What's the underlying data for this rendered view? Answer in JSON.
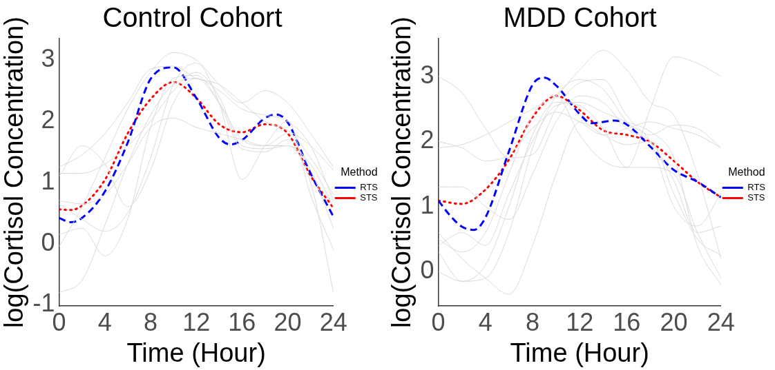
{
  "chart_data": [
    {
      "type": "line",
      "title": "Control Cohort",
      "xlabel": "Time (Hour)",
      "ylabel": "log(Cortisol Concentration)",
      "legend_title": "Method",
      "legend": "right",
      "grid": false,
      "xlim": [
        0,
        24
      ],
      "xticks": [
        0,
        4,
        8,
        12,
        16,
        20,
        24
      ],
      "ylim": [
        -1.02,
        3.35
      ],
      "yticks": [
        -1,
        0,
        1,
        2,
        3
      ],
      "series": [
        {
          "color": "#d9d9d9",
          "line_style": "solid",
          "x": [
            0,
            2,
            4,
            6,
            8,
            10,
            12,
            14,
            16,
            18,
            20,
            22,
            24
          ],
          "values": [
            -0.05,
            0.6,
            1.4,
            2.2,
            2.8,
            3.12,
            3.0,
            2.6,
            2.3,
            2.5,
            2.3,
            1.8,
            1.25
          ]
        },
        {
          "color": "#d9d9d9",
          "line_style": "solid",
          "x": [
            0,
            2,
            4,
            6,
            8,
            10,
            12,
            14,
            16,
            18,
            20,
            22,
            24
          ],
          "values": [
            1.25,
            1.45,
            1.8,
            2.3,
            2.85,
            2.9,
            2.7,
            2.6,
            2.3,
            2.0,
            1.85,
            1.6,
            1.2
          ]
        },
        {
          "color": "#d9d9d9",
          "line_style": "solid",
          "x": [
            0,
            2,
            4,
            6,
            8,
            10,
            12,
            14,
            16,
            18,
            20,
            22,
            24
          ],
          "values": [
            0.65,
            0.4,
            0.2,
            0.5,
            1.4,
            2.6,
            2.95,
            2.3,
            1.05,
            1.6,
            2.0,
            0.8,
            -0.1
          ]
        },
        {
          "color": "#d9d9d9",
          "line_style": "solid",
          "x": [
            0,
            2,
            4,
            6,
            8,
            10,
            12,
            14,
            16,
            18,
            20,
            22,
            24
          ],
          "values": [
            1.1,
            1.6,
            1.3,
            0.6,
            1.2,
            2.3,
            2.7,
            2.5,
            2.2,
            2.1,
            2.0,
            1.6,
            0.7
          ]
        },
        {
          "color": "#d9d9d9",
          "line_style": "solid",
          "x": [
            0,
            2,
            4,
            6,
            8,
            10,
            12,
            14,
            16,
            18,
            20,
            22,
            24
          ],
          "values": [
            -0.8,
            -0.6,
            0.3,
            1.3,
            2.1,
            2.6,
            2.7,
            2.3,
            1.7,
            1.6,
            1.6,
            1.0,
            -0.8
          ]
        },
        {
          "color": "#d9d9d9",
          "line_style": "solid",
          "x": [
            0,
            2,
            4,
            6,
            8,
            10,
            12,
            14,
            16,
            18,
            20,
            22,
            24
          ],
          "values": [
            0.7,
            0.65,
            0.8,
            1.3,
            1.9,
            2.05,
            1.9,
            1.8,
            1.7,
            1.6,
            1.8,
            1.4,
            0.8
          ]
        },
        {
          "color": "#d9d9d9",
          "line_style": "solid",
          "x": [
            0,
            2,
            4,
            6,
            8,
            10,
            12,
            14,
            16,
            18,
            20,
            22,
            24
          ],
          "values": [
            0.15,
            0.25,
            -0.2,
            0.4,
            1.9,
            2.7,
            2.75,
            2.3,
            1.55,
            1.5,
            1.7,
            1.2,
            0.25
          ]
        },
        {
          "color": "#d9d9d9",
          "line_style": "solid",
          "x": [
            0,
            2,
            4,
            6,
            8,
            10,
            12,
            14,
            16,
            18,
            20,
            22,
            24
          ],
          "values": [
            1.15,
            1.15,
            1.3,
            1.6,
            2.0,
            2.5,
            2.8,
            2.4,
            1.6,
            1.55,
            1.6,
            1.3,
            0.6
          ]
        },
        {
          "name": "RTS",
          "color": "#0000ff",
          "line_style": "dashed",
          "x": [
            0,
            1,
            2,
            4,
            6,
            8,
            10,
            12,
            14,
            15,
            16,
            18,
            19,
            20,
            22,
            24
          ],
          "values": [
            0.42,
            0.35,
            0.42,
            0.85,
            1.65,
            2.69,
            2.88,
            2.38,
            1.73,
            1.62,
            1.69,
            2.05,
            2.11,
            1.98,
            1.15,
            0.44
          ]
        },
        {
          "name": "STS",
          "color": "#ff0000",
          "line_style": "dotted",
          "x": [
            0,
            1,
            2,
            4,
            6,
            8,
            10,
            12,
            14,
            16,
            18,
            20,
            22,
            24
          ],
          "values": [
            0.56,
            0.55,
            0.62,
            1.04,
            1.8,
            2.36,
            2.64,
            2.38,
            1.95,
            1.82,
            1.95,
            1.8,
            1.11,
            0.58
          ]
        }
      ]
    },
    {
      "type": "line",
      "title": "MDD Cohort",
      "xlabel": "Time (Hour)",
      "ylabel": "log(Cortisol Concentration)",
      "legend_title": "Method",
      "legend": "right",
      "grid": false,
      "xlim": [
        0,
        24
      ],
      "xticks": [
        0,
        4,
        8,
        12,
        16,
        20,
        24
      ],
      "ylim": [
        -0.53,
        3.58
      ],
      "yticks": [
        0,
        1,
        2,
        3
      ],
      "series": [
        {
          "color": "#d9d9d9",
          "line_style": "solid",
          "x": [
            0,
            2,
            4,
            6,
            8,
            10,
            12,
            14,
            16,
            18,
            20,
            22,
            24
          ],
          "values": [
            3.0,
            2.75,
            2.2,
            1.75,
            1.8,
            2.5,
            2.9,
            2.95,
            2.4,
            2.1,
            2.25,
            2.2,
            1.9
          ]
        },
        {
          "color": "#d9d9d9",
          "line_style": "solid",
          "x": [
            0,
            2,
            4,
            6,
            8,
            10,
            12,
            14,
            16,
            18,
            20,
            22,
            24
          ],
          "values": [
            1.9,
            1.95,
            2.1,
            2.3,
            2.5,
            2.7,
            3.1,
            3.4,
            3.1,
            2.6,
            2.4,
            1.5,
            0.2
          ]
        },
        {
          "color": "#d9d9d9",
          "line_style": "solid",
          "x": [
            0,
            2,
            4,
            6,
            8,
            10,
            12,
            14,
            16,
            18,
            20,
            22,
            24
          ],
          "values": [
            0.5,
            0.3,
            0.6,
            1.5,
            2.4,
            2.7,
            2.1,
            1.7,
            1.6,
            2.5,
            3.3,
            3.2,
            3.0
          ]
        },
        {
          "color": "#d9d9d9",
          "line_style": "solid",
          "x": [
            0,
            2,
            4,
            6,
            8,
            10,
            12,
            14,
            16,
            18,
            20,
            22,
            24
          ],
          "values": [
            0.3,
            -0.15,
            -0.1,
            0.6,
            1.9,
            2.7,
            2.95,
            2.8,
            2.3,
            2.0,
            1.0,
            0.7,
            1.2
          ]
        },
        {
          "color": "#d9d9d9",
          "line_style": "solid",
          "x": [
            0,
            2,
            4,
            6,
            8,
            10,
            12,
            14,
            16,
            18,
            20,
            22,
            24
          ],
          "values": [
            0.6,
            0.2,
            -0.1,
            -0.35,
            0.4,
            1.5,
            2.3,
            2.1,
            1.95,
            2.0,
            1.2,
            0.5,
            0.25
          ]
        },
        {
          "color": "#d9d9d9",
          "line_style": "solid",
          "x": [
            0,
            2,
            4,
            6,
            8,
            10,
            12,
            14,
            16,
            18,
            20,
            22,
            24
          ],
          "values": [
            1.3,
            1.3,
            1.0,
            0.8,
            1.5,
            2.3,
            2.7,
            2.6,
            2.2,
            2.0,
            1.4,
            0.6,
            0.7
          ]
        },
        {
          "color": "#d9d9d9",
          "line_style": "solid",
          "x": [
            0,
            2,
            4,
            6,
            8,
            10,
            12,
            14,
            16,
            18,
            20,
            22,
            24
          ],
          "values": [
            0.0,
            -0.15,
            0.1,
            1.0,
            2.1,
            2.6,
            2.55,
            2.2,
            1.6,
            1.6,
            1.5,
            0.6,
            -0.1
          ]
        },
        {
          "color": "#d9d9d9",
          "line_style": "solid",
          "x": [
            0,
            2,
            4,
            6,
            8,
            10,
            12,
            14,
            16,
            18,
            20,
            22,
            24
          ],
          "values": [
            2.0,
            1.9,
            1.7,
            1.8,
            2.2,
            2.45,
            2.3,
            2.1,
            2.2,
            2.3,
            2.2,
            2.1,
            1.9
          ]
        },
        {
          "color": "#d9d9d9",
          "line_style": "solid",
          "x": [
            0,
            2,
            4,
            6,
            8,
            10,
            12,
            14,
            16,
            18,
            20,
            22,
            24
          ],
          "values": [
            0.4,
            0.6,
            0.4,
            1.2,
            2.0,
            2.55,
            2.6,
            2.45,
            2.3,
            2.15,
            1.75,
            0.4,
            -0.2
          ]
        },
        {
          "name": "RTS",
          "color": "#0000ff",
          "line_style": "dashed",
          "x": [
            0,
            1,
            2,
            3,
            4,
            6,
            8,
            9,
            10,
            12,
            13,
            15,
            16,
            18,
            20,
            22,
            24
          ],
          "values": [
            1.09,
            0.86,
            0.69,
            0.64,
            0.83,
            1.85,
            2.87,
            2.98,
            2.86,
            2.42,
            2.28,
            2.32,
            2.26,
            1.92,
            1.56,
            1.38,
            1.14
          ]
        },
        {
          "name": "STS",
          "color": "#ff0000",
          "line_style": "dotted",
          "x": [
            0,
            2,
            4,
            6,
            8,
            10,
            12,
            14,
            16,
            18,
            20,
            22,
            24
          ],
          "values": [
            1.09,
            1.04,
            1.26,
            1.72,
            2.37,
            2.7,
            2.48,
            2.17,
            2.1,
            1.99,
            1.7,
            1.38,
            1.14
          ]
        }
      ]
    }
  ]
}
